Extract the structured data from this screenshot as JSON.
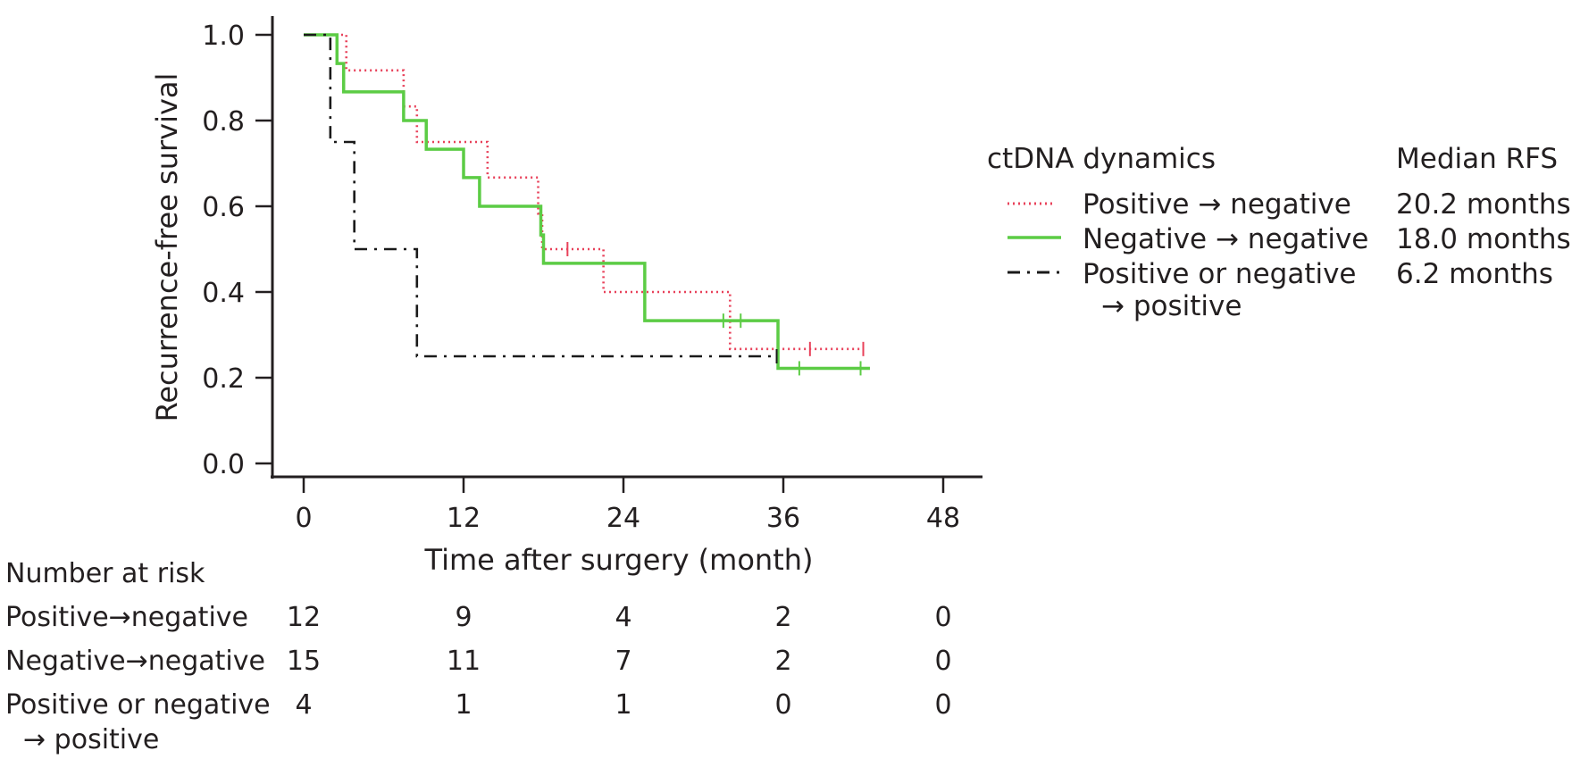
{
  "chart_data": {
    "type": "line",
    "xlabel": "Time after surgery (month)",
    "ylabel": "Recurrence-free survival",
    "xlim": [
      0,
      48
    ],
    "ylim": [
      0,
      1
    ],
    "x_ticks": [
      "0",
      "12",
      "24",
      "36",
      "48"
    ],
    "y_ticks": [
      "0.0",
      "0.2",
      "0.4",
      "0.6",
      "0.8",
      "1.0"
    ],
    "grid": false,
    "legend": {
      "placement": "right",
      "header_group": "ctDNA dynamics",
      "header_median": "Median RFS"
    },
    "series": [
      {
        "name": "Positive → negative",
        "median": "20.2 months",
        "color": "#e8415a",
        "style": "dotted",
        "steps": [
          [
            0,
            1.0
          ],
          [
            3.2,
            0.917
          ],
          [
            7.5,
            0.833
          ],
          [
            8.5,
            0.75
          ],
          [
            13.8,
            0.667
          ],
          [
            17.6,
            0.583
          ],
          [
            17.9,
            0.5
          ],
          [
            22.5,
            0.4
          ],
          [
            32.0,
            0.267
          ],
          [
            42.0,
            0.267
          ]
        ],
        "censored": [
          [
            19.8,
            0.5
          ],
          [
            38.0,
            0.267
          ],
          [
            42.0,
            0.267
          ]
        ]
      },
      {
        "name": "Negative → negative",
        "median": "18.0 months",
        "color": "#5ccc45",
        "style": "solid",
        "steps": [
          [
            0,
            1.0
          ],
          [
            2.5,
            0.933
          ],
          [
            3.0,
            0.867
          ],
          [
            7.5,
            0.8
          ],
          [
            9.2,
            0.733
          ],
          [
            12.0,
            0.667
          ],
          [
            13.2,
            0.6
          ],
          [
            17.8,
            0.533
          ],
          [
            18.0,
            0.467
          ],
          [
            25.6,
            0.333
          ],
          [
            35.6,
            0.222
          ],
          [
            42.5,
            0.222
          ]
        ],
        "censored": [
          [
            31.5,
            0.333
          ],
          [
            32.8,
            0.333
          ],
          [
            37.2,
            0.222
          ],
          [
            41.8,
            0.222
          ]
        ]
      },
      {
        "name": "Positive or negative",
        "name_line2": "→ positive",
        "median": "6.2 months",
        "color": "#1a1a1a",
        "style": "dashdot",
        "steps": [
          [
            0,
            1.0
          ],
          [
            2.0,
            0.75
          ],
          [
            3.8,
            0.5
          ],
          [
            8.5,
            0.25
          ],
          [
            35.5,
            0.25
          ]
        ],
        "censored": [
          [
            35.5,
            0.25
          ]
        ]
      }
    ],
    "risk_table": {
      "title": "Number at risk",
      "times": [
        0,
        12,
        24,
        36,
        48
      ],
      "rows": [
        {
          "label": "Positive→negative",
          "counts": [
            "12",
            "9",
            "4",
            "2",
            "0"
          ]
        },
        {
          "label": "Negative→negative",
          "counts": [
            "15",
            "11",
            "7",
            "2",
            "0"
          ]
        },
        {
          "label": "Positive or negative",
          "label_line2": "→ positive",
          "counts": [
            "4",
            "1",
            "1",
            "0",
            "0"
          ]
        }
      ]
    }
  }
}
